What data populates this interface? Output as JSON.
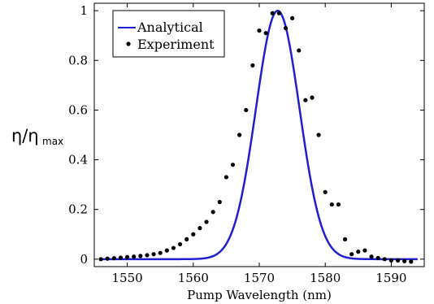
{
  "chart_data": {
    "type": "line",
    "xlabel": "Pump Wavelength (nm)",
    "ylabel": "η/η",
    "ylabel_subscript": "max",
    "xlim": [
      1545,
      1595
    ],
    "ylim": [
      -0.03,
      1.03
    ],
    "xticks": [
      1550,
      1560,
      1570,
      1580,
      1590
    ],
    "yticks": [
      0,
      0.2,
      0.4,
      0.6,
      0.8,
      1
    ],
    "ytick_labels": [
      "0",
      "0.2",
      "0.4",
      "0.6",
      "0.8",
      "1"
    ],
    "legend_position": "top-left",
    "grid": false,
    "series": [
      {
        "name": "Analytical",
        "kind": "line",
        "color": "#1f1fd1",
        "model": {
          "center": 1572.8,
          "sigma": 3.3,
          "peak": 1.0,
          "x_start": 1546,
          "x_end": 1594
        }
      },
      {
        "name": "Experiment",
        "kind": "scatter",
        "color": "#000000",
        "points": [
          [
            1546,
            0.0
          ],
          [
            1547,
            0.002
          ],
          [
            1548,
            0.004
          ],
          [
            1549,
            0.006
          ],
          [
            1550,
            0.008
          ],
          [
            1551,
            0.01
          ],
          [
            1552,
            0.013
          ],
          [
            1553,
            0.016
          ],
          [
            1554,
            0.02
          ],
          [
            1555,
            0.025
          ],
          [
            1556,
            0.035
          ],
          [
            1557,
            0.045
          ],
          [
            1558,
            0.06
          ],
          [
            1559,
            0.08
          ],
          [
            1560,
            0.1
          ],
          [
            1561,
            0.125
          ],
          [
            1562,
            0.15
          ],
          [
            1563,
            0.19
          ],
          [
            1564,
            0.23
          ],
          [
            1565,
            0.33
          ],
          [
            1566,
            0.38
          ],
          [
            1567,
            0.5
          ],
          [
            1568,
            0.6
          ],
          [
            1569,
            0.78
          ],
          [
            1570,
            0.92
          ],
          [
            1571,
            0.91
          ],
          [
            1572,
            0.99
          ],
          [
            1573,
            0.99
          ],
          [
            1574,
            0.93
          ],
          [
            1575,
            0.97
          ],
          [
            1576,
            0.84
          ],
          [
            1577,
            0.64
          ],
          [
            1578,
            0.65
          ],
          [
            1579,
            0.5
          ],
          [
            1580,
            0.27
          ],
          [
            1581,
            0.22
          ],
          [
            1582,
            0.22
          ],
          [
            1583,
            0.08
          ],
          [
            1584,
            0.02
          ],
          [
            1585,
            0.03
          ],
          [
            1586,
            0.035
          ],
          [
            1587,
            0.01
          ],
          [
            1588,
            0.005
          ],
          [
            1589,
            0.0
          ],
          [
            1590,
            -0.005
          ],
          [
            1591,
            -0.005
          ],
          [
            1592,
            -0.008
          ],
          [
            1593,
            -0.01
          ]
        ]
      }
    ]
  }
}
